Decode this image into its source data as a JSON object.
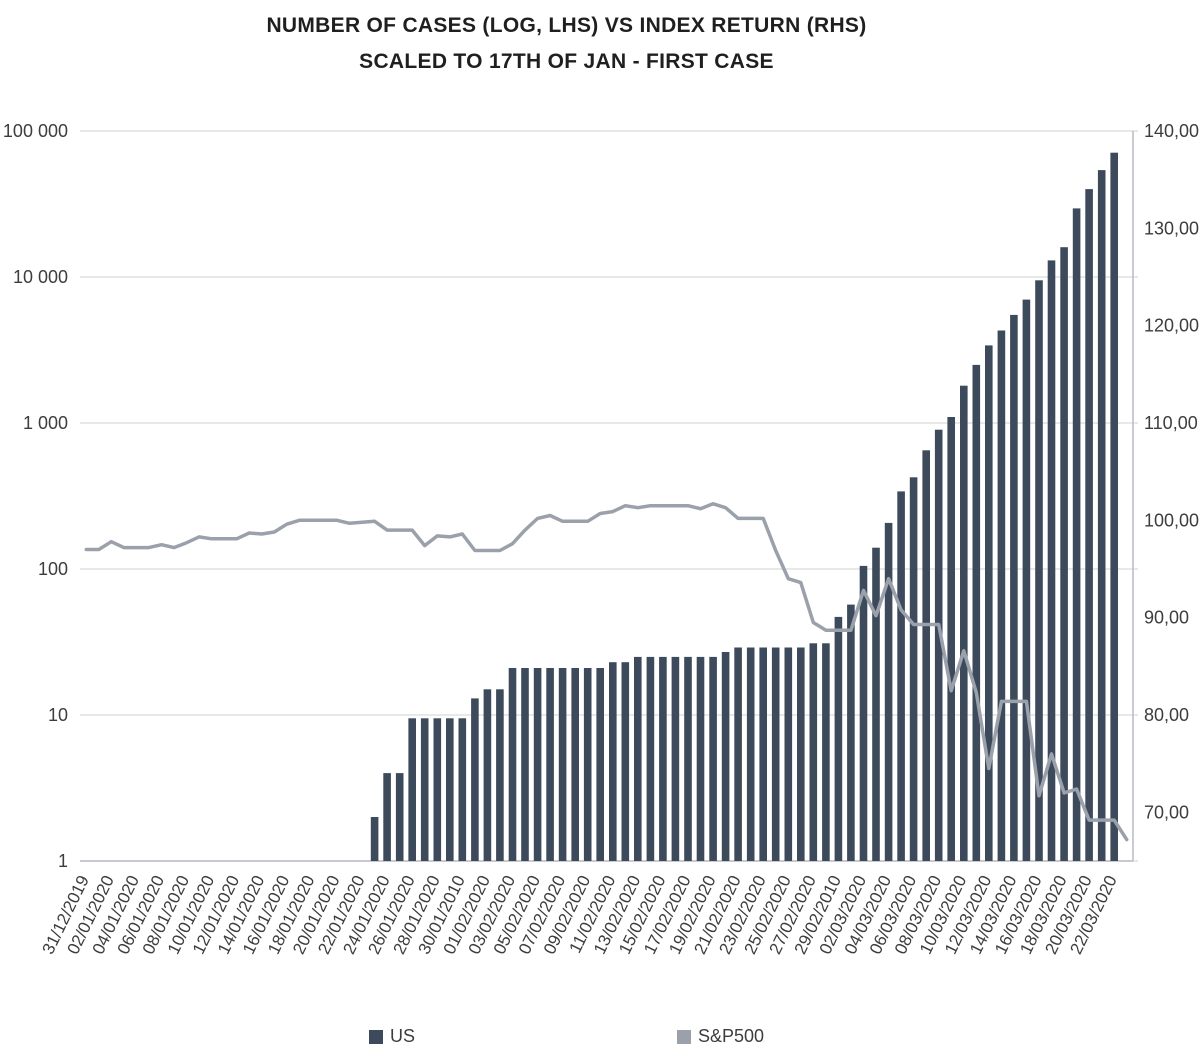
{
  "title": {
    "line1": "NUMBER OF CASES (LOG, LHS) VS INDEX RETURN (RHS)",
    "line2": "SCALED TO 17TH OF JAN - FIRST CASE"
  },
  "legend": {
    "items": [
      {
        "label": "US",
        "color": "#3d4a5c",
        "marker": "square"
      },
      {
        "label": "S&P500",
        "color": "#9aa1ab",
        "marker": "square"
      }
    ]
  },
  "colors": {
    "background": "#ffffff",
    "grid": "#d9d9d9",
    "axis_line": "#b8bcc2",
    "axis_text": "#3d3d3d",
    "bar": "#3d4a5c",
    "line": "#9aa1ab"
  },
  "chart_data": {
    "type": "combo",
    "subtype": "bar+line",
    "n_points": 84,
    "label_every": 2,
    "grid": true,
    "legend_position": "bottom",
    "x_labels": [
      "31/12/2019",
      "02/01/2020",
      "04/01/2020",
      "06/01/2020",
      "08/01/2020",
      "10/01/2020",
      "12/01/2020",
      "14/01/2020",
      "16/01/2020",
      "18/01/2020",
      "20/01/2020",
      "22/01/2020",
      "24/01/2020",
      "26/01/2020",
      "28/01/2020",
      "30/01/2010",
      "01/02/2020",
      "03/02/2020",
      "05/02/2020",
      "07/02/2020",
      "09/02/2020",
      "11/02/2020",
      "13/02/2020",
      "15/02/2020",
      "17/02/2020",
      "19/02/2020",
      "21/02/2020",
      "23/02/2020",
      "25/02/2020",
      "27/02/2020",
      "29/02/2010",
      "02/03/2020",
      "04/03/2020",
      "06/03/2020",
      "08/03/2020",
      "10/03/2020",
      "12/03/2020",
      "14/03/2020",
      "16/03/2020",
      "18/03/2020",
      "20/03/2020",
      "22/03/2020"
    ],
    "left_axis": {
      "scale": "log",
      "range": [
        1,
        100000
      ],
      "ticks": [
        "100 000",
        "10 000",
        "1 000",
        "100",
        "10",
        "1"
      ],
      "tick_values": [
        100000,
        10000,
        1000,
        100,
        10,
        1
      ]
    },
    "right_axis": {
      "scale": "linear",
      "range": [
        65,
        140
      ],
      "ticks": [
        "140,00",
        "130,00",
        "120,00",
        "110,00",
        "100,00",
        "90,00",
        "80,00",
        "70,00"
      ],
      "tick_values": [
        140,
        130,
        120,
        110,
        100,
        90,
        80,
        70
      ]
    },
    "series": [
      {
        "name": "US",
        "type": "bar",
        "axis": "left",
        "color": "#3d4a5c",
        "values": [
          0,
          0,
          0,
          0,
          0,
          0,
          0,
          0,
          0,
          0,
          0,
          0,
          0,
          0,
          0,
          0,
          0,
          0,
          0,
          0,
          0,
          0,
          0,
          2,
          4,
          4,
          9.5,
          9.5,
          9.5,
          9.5,
          9.5,
          13,
          15,
          15,
          21,
          21,
          21,
          21,
          21,
          21,
          21,
          21,
          23,
          23,
          25,
          25,
          25,
          25,
          25,
          25,
          25,
          27,
          29,
          29,
          29,
          29,
          29,
          29,
          31,
          31,
          47,
          57,
          105,
          140,
          207,
          340,
          425,
          650,
          900,
          1100,
          1800,
          2500,
          3400,
          4300,
          5500,
          7000,
          9500,
          13000,
          16000,
          29500,
          40000,
          54000,
          71000,
          0
        ]
      },
      {
        "name": "S&P500",
        "type": "line",
        "axis": "right",
        "color": "#9aa1ab",
        "values": [
          97,
          97,
          97.8,
          97.2,
          97.2,
          97.2,
          97.5,
          97.2,
          97.7,
          98.3,
          98.1,
          98.1,
          98.1,
          98.7,
          98.6,
          98.8,
          99.6,
          100,
          100,
          100,
          100,
          99.7,
          99.8,
          99.9,
          99,
          99,
          99,
          97.4,
          98.4,
          98.3,
          98.6,
          96.9,
          96.9,
          96.9,
          97.6,
          99,
          100.2,
          100.5,
          99.9,
          99.9,
          99.9,
          100.7,
          100.9,
          101.5,
          101.3,
          101.5,
          101.5,
          101.5,
          101.5,
          101.2,
          101.7,
          101.3,
          100.2,
          100.2,
          100.2,
          96.9,
          94,
          93.6,
          89.5,
          88.7,
          88.7,
          88.7,
          92.8,
          90.2,
          94,
          90.8,
          89.3,
          89.3,
          89.3,
          82.5,
          86.6,
          82.3,
          74.5,
          81.4,
          81.4,
          81.4,
          71.7,
          76,
          72,
          72.4,
          69.2,
          69.2,
          69.2,
          67.2
        ]
      }
    ]
  }
}
